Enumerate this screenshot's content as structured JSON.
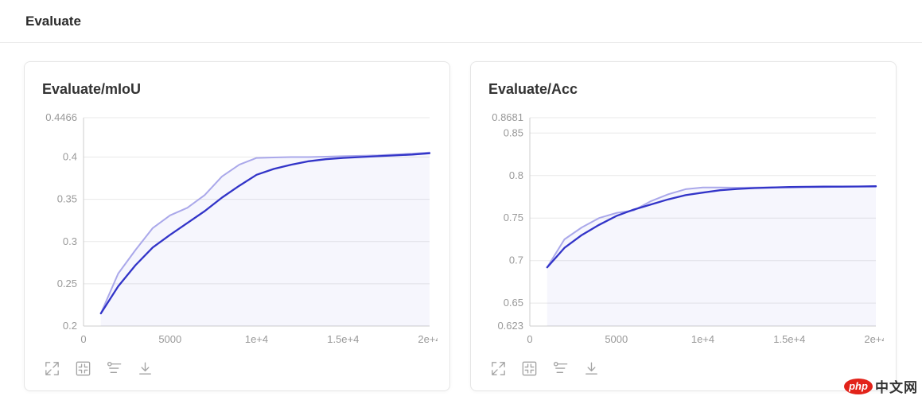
{
  "page": {
    "header_title": "Evaluate"
  },
  "toolbar": {
    "icons": [
      "expand-icon",
      "fit-screen-icon",
      "smoothing-icon",
      "download-icon"
    ]
  },
  "colors": {
    "raw_line": "#aaa8ea",
    "smoothed_line": "#3234c8",
    "area_fill": "rgba(45,49,201,0.045)",
    "gridline": "#e8e8e8",
    "axis_line": "#cccccc",
    "tick_text": "#999999",
    "watermark_red": "#e2231a"
  },
  "watermark": {
    "badge": "php",
    "text": "中文网"
  },
  "chart_data": [
    {
      "type": "line",
      "title": "Evaluate/mIoU",
      "xlabel": "",
      "ylabel": "",
      "xlim": [
        0,
        20000
      ],
      "ylim": [
        0.2,
        0.4466
      ],
      "grid": true,
      "legend_position": "none",
      "x": [
        1000,
        2000,
        3000,
        4000,
        5000,
        6000,
        7000,
        8000,
        9000,
        10000,
        11000,
        12000,
        13000,
        14000,
        15000,
        16000,
        17000,
        18000,
        19000,
        20000
      ],
      "x_ticks": {
        "values": [
          0,
          5000,
          10000,
          15000,
          20000
        ],
        "labels": [
          "0",
          "5000",
          "1e+4",
          "1.5e+4",
          "2e+4"
        ]
      },
      "y_ticks": {
        "values": [
          0.2,
          0.25,
          0.3,
          0.35,
          0.4,
          0.4466
        ],
        "labels": [
          "0.2",
          "0.25",
          "0.3",
          "0.35",
          "0.4",
          "0.4466"
        ]
      },
      "series": [
        {
          "name": "raw",
          "color": "#aaa8ea",
          "width": 2,
          "values": [
            0.215,
            0.262,
            0.29,
            0.316,
            0.331,
            0.34,
            0.355,
            0.377,
            0.391,
            0.399,
            0.3995,
            0.4,
            0.4,
            0.4005,
            0.401,
            0.4015,
            0.402,
            0.403,
            0.404,
            0.4055
          ]
        },
        {
          "name": "smoothed",
          "color": "#3234c8",
          "width": 2.3,
          "values": [
            0.215,
            0.247,
            0.272,
            0.293,
            0.308,
            0.322,
            0.336,
            0.352,
            0.366,
            0.379,
            0.386,
            0.391,
            0.395,
            0.3975,
            0.399,
            0.4,
            0.401,
            0.402,
            0.403,
            0.4045
          ]
        }
      ]
    },
    {
      "type": "line",
      "title": "Evaluate/Acc",
      "xlabel": "",
      "ylabel": "",
      "xlim": [
        0,
        20000
      ],
      "ylim": [
        0.623,
        0.8681
      ],
      "grid": true,
      "legend_position": "none",
      "x": [
        1000,
        2000,
        3000,
        4000,
        5000,
        6000,
        7000,
        8000,
        9000,
        10000,
        11000,
        12000,
        13000,
        14000,
        15000,
        16000,
        17000,
        18000,
        19000,
        20000
      ],
      "x_ticks": {
        "values": [
          0,
          5000,
          10000,
          15000,
          20000
        ],
        "labels": [
          "0",
          "5000",
          "1e+4",
          "1.5e+4",
          "2e+4"
        ]
      },
      "y_ticks": {
        "values": [
          0.623,
          0.65,
          0.7,
          0.75,
          0.8,
          0.85,
          0.8681
        ],
        "labels": [
          "0.623",
          "0.65",
          "0.7",
          "0.75",
          "0.8",
          "0.85",
          "0.8681"
        ]
      },
      "series": [
        {
          "name": "raw",
          "color": "#aaa8ea",
          "width": 2,
          "values": [
            0.692,
            0.725,
            0.739,
            0.75,
            0.756,
            0.759,
            0.77,
            0.778,
            0.784,
            0.786,
            0.786,
            0.7858,
            0.786,
            0.7862,
            0.786,
            0.7862,
            0.7865,
            0.787,
            0.787,
            0.787
          ]
        },
        {
          "name": "smoothed",
          "color": "#3234c8",
          "width": 2.3,
          "values": [
            0.692,
            0.715,
            0.73,
            0.742,
            0.7525,
            0.76,
            0.766,
            0.772,
            0.777,
            0.78,
            0.7828,
            0.7843,
            0.7853,
            0.786,
            0.7865,
            0.7868,
            0.787,
            0.787,
            0.7872,
            0.7875
          ]
        }
      ]
    }
  ]
}
